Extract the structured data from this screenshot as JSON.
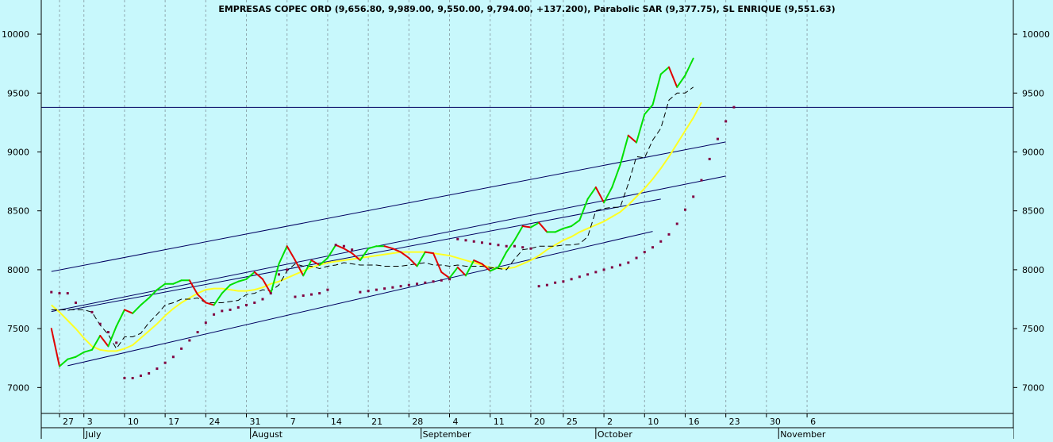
{
  "chart_data": {
    "type": "line",
    "title": "EMPRESAS COPEC ORD (9,656.80, 9,989.00, 9,550.00, 9,794.00, +137.200), Parabolic SAR (9,377.75), SL ENRIQUE (9,551.63)",
    "ylim": [
      6780,
      10290
    ],
    "y_ticks": [
      "7000",
      "7500",
      "8000",
      "8500",
      "9000",
      "9500",
      "10000"
    ],
    "x_index_range": [
      -1,
      51.3
    ],
    "x_ticks": [
      {
        "i": 0,
        "label": "27"
      },
      {
        "i": 3,
        "label": "3"
      },
      {
        "i": 8,
        "label": "10"
      },
      {
        "i": 13,
        "label": "17"
      },
      {
        "i": 18,
        "label": "24"
      },
      {
        "i": 23,
        "label": "31"
      },
      {
        "i": 28,
        "label": "7"
      },
      {
        "i": 33,
        "label": "14"
      },
      {
        "i": 38,
        "label": "21"
      },
      {
        "i": 43,
        "label": "28"
      },
      {
        "i": 48,
        "label": "4"
      },
      {
        "i": 53,
        "label": "11"
      },
      {
        "i": 58,
        "label": "20"
      },
      {
        "i": 62,
        "label": "25"
      },
      {
        "i": 67,
        "label": "2"
      },
      {
        "i": 72,
        "label": "10"
      },
      {
        "i": 77,
        "label": "16"
      },
      {
        "i": 82,
        "label": "23"
      },
      {
        "i": 87,
        "label": "30"
      },
      {
        "i": 92,
        "label": "6"
      }
    ],
    "months": [
      {
        "i": 3,
        "label": "July"
      },
      {
        "i": 23.5,
        "label": "August"
      },
      {
        "i": 44.5,
        "label": "September"
      },
      {
        "i": 66,
        "label": "October"
      },
      {
        "i": 88.5,
        "label": "November"
      }
    ],
    "price": [
      7500,
      7180,
      7240,
      7260,
      7300,
      7320,
      7440,
      7350,
      7520,
      7660,
      7630,
      7700,
      7760,
      7830,
      7880,
      7880,
      7910,
      7910,
      7790,
      7720,
      7700,
      7800,
      7870,
      7900,
      7920,
      7980,
      7920,
      7800,
      8050,
      8200,
      8080,
      7950,
      8080,
      8040,
      8100,
      8210,
      8180,
      8140,
      8080,
      8180,
      8200,
      8200,
      8180,
      8150,
      8100,
      8030,
      8150,
      8140,
      7980,
      7930,
      8020,
      7950,
      8080,
      8050,
      7990,
      8020,
      8150,
      8250,
      8370,
      8360,
      8400,
      8320,
      8320,
      8350,
      8370,
      8420,
      8600,
      8700,
      8570,
      8700,
      8890,
      9140,
      9080,
      9320,
      9400,
      9660,
      9720,
      9550,
      9650,
      9794
    ],
    "sar": [
      7810,
      7800,
      7800,
      7720,
      null,
      7640,
      7540,
      7470,
      7380,
      7080,
      7080,
      7100,
      7120,
      7160,
      7210,
      7260,
      7330,
      7400,
      7470,
      7550,
      7620,
      7650,
      7660,
      7680,
      7700,
      7720,
      7750,
      7800,
      7960,
      8000,
      7770,
      7780,
      7790,
      7800,
      7830,
      8210,
      8200,
      8170,
      7810,
      7820,
      7830,
      7840,
      7850,
      7860,
      7870,
      7880,
      7890,
      7900,
      7910,
      7920,
      8260,
      8250,
      8240,
      8230,
      8220,
      8210,
      8200,
      8200,
      8190,
      8180,
      7860,
      7870,
      7890,
      7900,
      7920,
      7940,
      7960,
      7980,
      8000,
      8020,
      8040,
      8060,
      8100,
      8150,
      8190,
      8240,
      8300,
      8390,
      8510,
      8620,
      8760,
      8940,
      9110,
      9260,
      9380
    ],
    "sl": [
      7660,
      7660,
      7660,
      7660,
      7660,
      7640,
      7530,
      7450,
      7330,
      7430,
      7430,
      7460,
      7550,
      7620,
      7700,
      7720,
      7750,
      7750,
      7760,
      7720,
      7720,
      7720,
      7730,
      7740,
      7790,
      7800,
      7830,
      7820,
      7870,
      7990,
      8050,
      8030,
      8030,
      8010,
      8030,
      8040,
      8060,
      8050,
      8040,
      8040,
      8040,
      8030,
      8030,
      8030,
      8040,
      8050,
      8060,
      8040,
      8040,
      8030,
      8040,
      8030,
      8030,
      8030,
      8020,
      8010,
      8000,
      8090,
      8170,
      8180,
      8200,
      8200,
      8200,
      8210,
      8210,
      8220,
      8280,
      8500,
      8520,
      8530,
      8530,
      8730,
      8960,
      8950,
      9100,
      9200,
      9440,
      9500,
      9500,
      9550
    ],
    "ma": [
      7700,
      7640,
      7570,
      7500,
      7420,
      7350,
      7320,
      7310,
      7310,
      7330,
      7360,
      7420,
      7480,
      7540,
      7610,
      7670,
      7720,
      7760,
      7800,
      7830,
      7840,
      7840,
      7830,
      7820,
      7820,
      7830,
      7850,
      7880,
      7900,
      7930,
      7960,
      7990,
      8020,
      8040,
      8060,
      8070,
      8080,
      8090,
      8100,
      8110,
      8120,
      8130,
      8140,
      8150,
      8150,
      8150,
      8150,
      8140,
      8130,
      8120,
      8100,
      8080,
      8060,
      8040,
      8020,
      8010,
      8010,
      8020,
      8050,
      8080,
      8120,
      8170,
      8210,
      8250,
      8280,
      8320,
      8350,
      8380,
      8410,
      8450,
      8490,
      8550,
      8620,
      8690,
      8770,
      8860,
      8960,
      9070,
      9180,
      9290,
      9420
    ],
    "hline": 9377.75,
    "channels": [
      {
        "x1": -1,
        "y1": 7985,
        "x2": 82,
        "y2": 9085
      },
      {
        "x1": -1,
        "y1": 7645,
        "x2": 82,
        "y2": 8795
      },
      {
        "x1": 1,
        "y1": 7655,
        "x2": 74,
        "y2": 8600
      },
      {
        "x1": 1,
        "y1": 7185,
        "x2": 73,
        "y2": 8325
      }
    ],
    "colors": {
      "background": "#c8f8fc",
      "up": "#00e000",
      "down": "#e00000",
      "sar": "#800040",
      "sl": "#000000",
      "ma": "#ffff22",
      "lines": "#000060",
      "grid": "#90a8b0"
    }
  }
}
